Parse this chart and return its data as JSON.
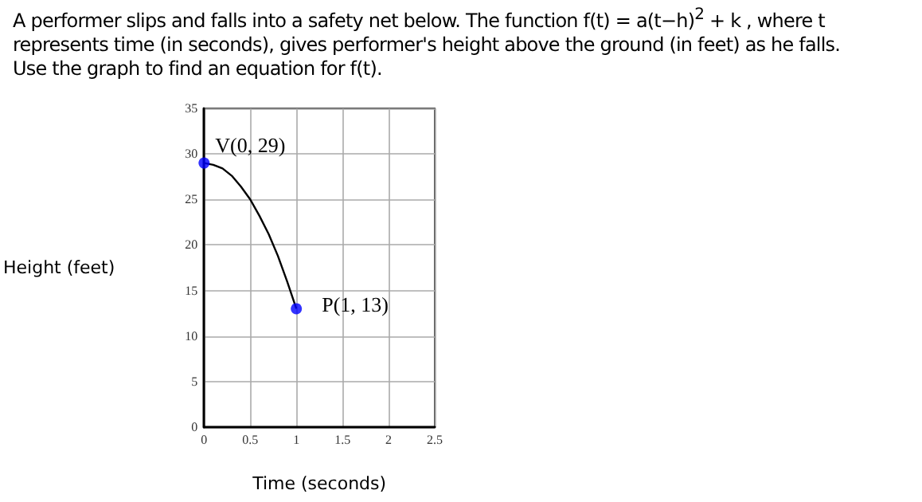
{
  "chart_data": {
    "type": "line",
    "title": "A performer slips and falls into a safety net below. The function f(t) = a(t−h)$^{2}$ + k , where t represents time (in seconds), gives performer's height above the ground (in feet) as he falls.",
    "subtitle": "Use the graph to find an equation for f(t).",
    "xlabel": "Time (seconds)",
    "ylabel": "Height (feet)",
    "series": [
      {
        "type": "line",
        "color": "#000000",
        "marker": "none",
        "x": [
          0,
          0.1,
          0.2,
          0.3,
          0.4,
          0.5,
          0.6,
          0.7,
          0.8,
          0.9,
          1
        ],
        "values": [
          29,
          28.8,
          28.4,
          27.6,
          26.4,
          25,
          23.2,
          21.2,
          18.8,
          16,
          13
        ]
      },
      {
        "type": "scatter",
        "color": "#0000ff",
        "marker": "circle",
        "x": [
          0,
          1
        ],
        "values": [
          29,
          13
        ]
      }
    ],
    "annotations": [
      {
        "text": "V(0, 29)",
        "x": 0,
        "y": 29
      },
      {
        "text": "P(1, 13)",
        "x": 1,
        "y": 13
      }
    ],
    "xlim": [
      0,
      2.5
    ],
    "xticks": [
      0,
      0.5,
      1,
      1.5,
      2,
      2.5
    ],
    "ylim": [
      0,
      35
    ],
    "yticks": [
      0,
      5,
      10,
      15,
      20,
      25,
      30,
      35
    ],
    "grid": true
  }
}
